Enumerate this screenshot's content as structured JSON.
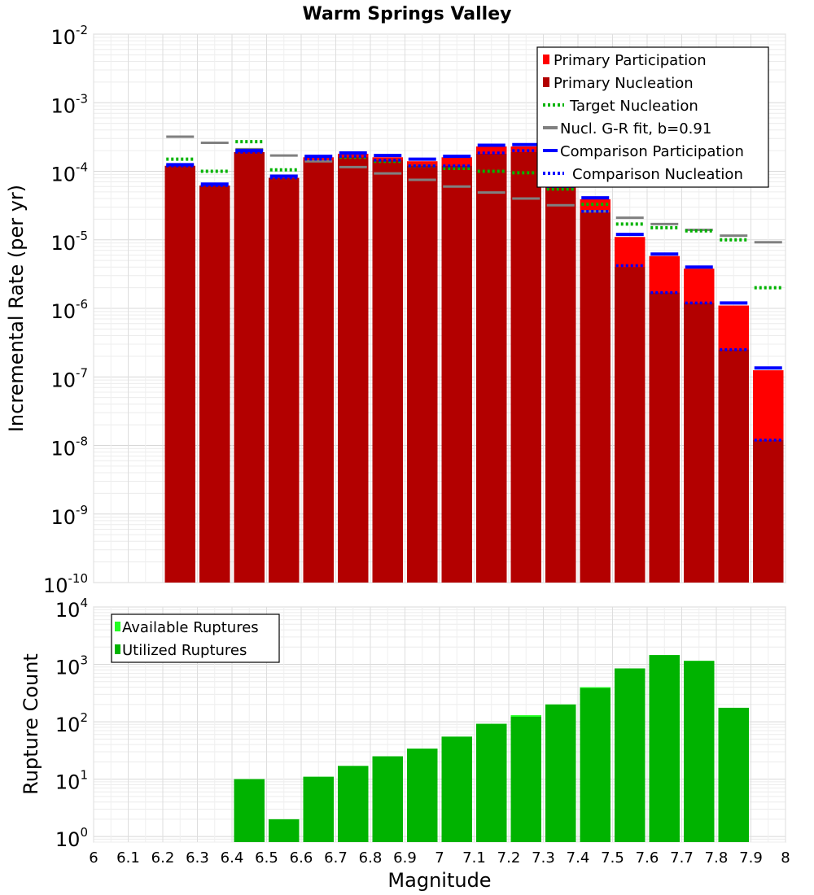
{
  "chart_data": [
    {
      "type": "bar",
      "title": "Warm Springs Valley",
      "ylabel": "Incremental Rate (per yr)",
      "xlabel": "",
      "xlim": [
        6.0,
        8.0
      ],
      "ylim": [
        1e-10,
        0.01
      ],
      "yscale": "log",
      "bin_width": 0.1,
      "bin_centers": [
        6.25,
        6.35,
        6.45,
        6.55,
        6.65,
        6.75,
        6.85,
        6.95,
        7.05,
        7.15,
        7.25,
        7.35,
        7.45,
        7.55,
        7.65,
        7.75,
        7.85,
        7.95
      ],
      "y_tick_bases": [
        "10",
        "10",
        "10",
        "10",
        "10",
        "10",
        "10",
        "10",
        "10"
      ],
      "y_tick_exponents": [
        "-2",
        "-3",
        "-4",
        "-5",
        "-6",
        "-7",
        "-8",
        "-9",
        "-10"
      ],
      "legend": {
        "position": "top-right",
        "entries": [
          "Primary Participation",
          "Primary Nucleation",
          "Target Nucleation",
          "Nucl. G-R fit, b=0.91",
          "Comparison Participation",
          "Comparison Nucleation"
        ]
      },
      "series": [
        {
          "name": "Primary Participation",
          "color": "#ff0000",
          "style": "bar",
          "values": [
            0.00012,
            6.2e-05,
            0.00019,
            8e-05,
            0.00016,
            0.00018,
            0.00016,
            0.00014,
            0.00016,
            0.00023,
            0.00023,
            0.00011,
            3.9e-05,
            1.1e-05,
            5.8e-06,
            3.8e-06,
            1.1e-06,
            1.25e-07
          ]
        },
        {
          "name": "Primary Nucleation",
          "color": "#b30000",
          "style": "bar",
          "values": [
            0.00012,
            6.2e-05,
            0.00019,
            8e-05,
            0.000145,
            0.00016,
            0.000145,
            0.00012,
            0.00012,
            0.00018,
            0.00019,
            6e-05,
            2.5e-05,
            4e-06,
            1.7e-06,
            1.2e-06,
            2.5e-07,
            1.2e-08
          ]
        },
        {
          "name": "Target Nucleation",
          "color": "#00b300",
          "style": "dotted",
          "values": [
            0.00015,
            0.0001,
            0.00027,
            0.000105,
            0.00016,
            0.00016,
            0.00014,
            0.00012,
            0.00011,
            0.0001,
            9.5e-05,
            5.5e-05,
            3.3e-05,
            1.7e-05,
            1.5e-05,
            1.35e-05,
            1e-05,
            2e-06
          ]
        },
        {
          "name": "Nucl. G-R fit, b=0.91",
          "color": "#808080",
          "style": "segment",
          "values": [
            0.00032,
            0.00026,
            0.00021,
            0.00017,
            0.00014,
            0.000115,
            9.3e-05,
            7.5e-05,
            6e-05,
            4.9e-05,
            4e-05,
            3.2e-05,
            2.6e-05,
            2.1e-05,
            1.7e-05,
            1.4e-05,
            1.15e-05,
            9.2e-06
          ]
        },
        {
          "name": "Comparison Participation",
          "color": "#0000ff",
          "style": "segment",
          "values": [
            0.000125,
            6.5e-05,
            0.0002,
            8.5e-05,
            0.000165,
            0.000185,
            0.00017,
            0.00015,
            0.000165,
            0.00024,
            0.000245,
            0.000115,
            4.1e-05,
            1.2e-05,
            6.2e-06,
            4e-06,
            1.2e-06,
            1.35e-07
          ]
        },
        {
          "name": "Comparison Nucleation",
          "color": "#0000ff",
          "style": "dotted",
          "values": [
            0.00012,
            6.2e-05,
            0.00019,
            8e-05,
            0.00015,
            0.000165,
            0.000145,
            0.00012,
            0.00012,
            0.000185,
            0.0002,
            6e-05,
            2.6e-05,
            4.2e-06,
            1.7e-06,
            1.2e-06,
            2.5e-07,
            1.2e-08
          ]
        }
      ]
    },
    {
      "type": "bar",
      "title": "",
      "ylabel": "Rupture Count",
      "xlabel": "Magnitude",
      "xlim": [
        6.0,
        8.0
      ],
      "ylim": [
        0.8,
        10000
      ],
      "yscale": "log",
      "bin_width": 0.1,
      "bin_centers": [
        6.45,
        6.55,
        6.65,
        6.75,
        6.85,
        6.95,
        7.05,
        7.15,
        7.25,
        7.35,
        7.45,
        7.55,
        7.65,
        7.75,
        7.85
      ],
      "x_ticks": [
        "6",
        "6.1",
        "6.2",
        "6.3",
        "6.4",
        "6.5",
        "6.6",
        "6.7",
        "6.8",
        "6.9",
        "7",
        "7.1",
        "7.2",
        "7.3",
        "7.4",
        "7.5",
        "7.6",
        "7.7",
        "7.8",
        "7.9",
        "8"
      ],
      "y_tick_bases": [
        "10",
        "10",
        "10",
        "10",
        "10"
      ],
      "y_tick_exponents": [
        "4",
        "3",
        "2",
        "1",
        "0"
      ],
      "legend": {
        "position": "top-left",
        "entries": [
          "Available Ruptures",
          "Utilized Ruptures"
        ]
      },
      "series": [
        {
          "name": "Available Ruptures",
          "color": "#22ff22",
          "values": [
            10,
            2,
            11,
            17,
            25,
            34,
            55,
            92,
            130,
            200,
            400,
            850,
            1450,
            1150,
            175
          ]
        },
        {
          "name": "Utilized Ruptures",
          "color": "#00b300",
          "values": [
            10,
            2,
            11,
            17,
            25,
            34,
            55,
            92,
            122,
            200,
            385,
            850,
            1450,
            1150,
            175
          ]
        }
      ]
    }
  ]
}
